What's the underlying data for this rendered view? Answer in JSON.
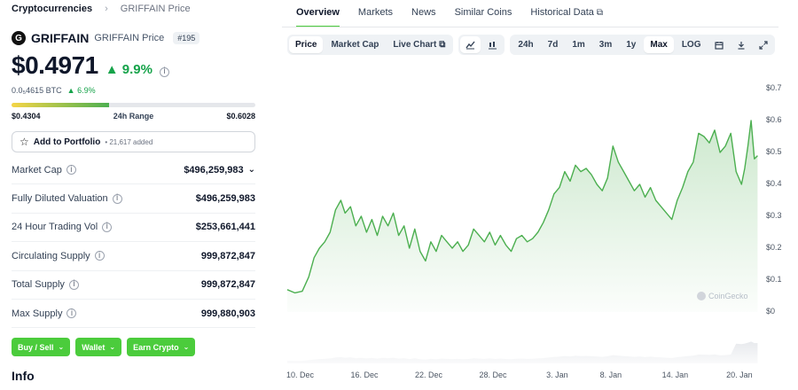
{
  "breadcrumb": {
    "parent": "Cryptocurrencies",
    "current": "GRIFFAIN Price"
  },
  "coin": {
    "logo_letter": "G",
    "name": "GRIFFAIN",
    "subtitle": "GRIFFAIN Price",
    "rank": "#195",
    "price": "$0.4971",
    "change_24h": "9.9%",
    "btc_price": "0.0₅4615 BTC",
    "btc_change": "6.9%"
  },
  "range": {
    "low": "$0.4304",
    "label": "24h Range",
    "high": "$0.6028",
    "position": 0.4
  },
  "portfolio": {
    "label": "Add to Portfolio",
    "added": "• 21,617 added"
  },
  "stats": [
    {
      "label": "Market Cap",
      "value": "$496,259,983",
      "dropdown": true
    },
    {
      "label": "Fully Diluted Valuation",
      "value": "$496,259,983",
      "dropdown": false
    },
    {
      "label": "24 Hour Trading Vol",
      "value": "$253,661,441",
      "dropdown": false
    },
    {
      "label": "Circulating Supply",
      "value": "999,872,847",
      "dropdown": false
    },
    {
      "label": "Total Supply",
      "value": "999,872,847",
      "dropdown": false
    },
    {
      "label": "Max Supply",
      "value": "999,880,903",
      "dropdown": false
    }
  ],
  "actions": {
    "buy_sell": "Buy / Sell",
    "wallet": "Wallet",
    "earn": "Earn Crypto"
  },
  "info_heading": "Info",
  "main_tabs": [
    "Overview",
    "Markets",
    "News",
    "Similar Coins",
    "Historical Data"
  ],
  "chart_type_tabs": [
    "Price",
    "Market Cap",
    "Live Chart"
  ],
  "range_tabs": [
    "24h",
    "7d",
    "1m",
    "3m",
    "1y",
    "Max",
    "LOG"
  ],
  "watermark": "CoinGecko",
  "colors": {
    "accent": "#4bcc3c",
    "up": "#16a34a",
    "line": "#4caf50"
  },
  "chart_data": {
    "type": "line",
    "title": "",
    "xlabel": "",
    "ylabel": "",
    "ylim": [
      0,
      0.7
    ],
    "y_ticks": [
      "$0",
      "$0.1",
      "$0.2",
      "$0.3",
      "$0.4",
      "$0.5",
      "$0.6",
      "$0.7"
    ],
    "x_tick_labels": [
      "10. Dec",
      "16. Dec",
      "22. Dec",
      "28. Dec",
      "3. Jan",
      "8. Jan",
      "14. Jan",
      "20. Jan"
    ],
    "x_tick_days": [
      10,
      16,
      22,
      28,
      34,
      39,
      45,
      51
    ],
    "x_range_days": [
      8.8,
      53.0
    ],
    "series": [
      {
        "x": [
          8.8,
          9.5,
          10.2,
          10.8,
          11.3,
          11.8,
          12.3,
          12.8,
          13.3,
          13.8,
          14.2,
          14.7,
          15.2,
          15.7,
          16.2,
          16.7,
          17.2,
          17.7,
          18.2,
          18.7,
          19.2,
          19.7,
          20.2,
          20.7,
          21.2,
          21.7,
          22.2,
          22.7,
          23.2,
          23.7,
          24.2,
          24.7,
          25.2,
          25.7,
          26.2,
          26.7,
          27.2,
          27.7,
          28.2,
          28.7,
          29.2,
          29.7,
          30.2,
          30.7,
          31.2,
          31.7,
          32.2,
          32.7,
          33.2,
          33.7,
          34.2,
          34.7,
          35.2,
          35.7,
          36.2,
          36.7,
          37.2,
          37.7,
          38.2,
          38.7,
          39.2,
          39.7,
          40.2,
          40.7,
          41.2,
          41.7,
          42.2,
          42.7,
          43.2,
          43.7,
          44.2,
          44.7,
          45.2,
          45.7,
          46.2,
          46.7,
          47.2,
          47.7,
          48.2,
          48.7,
          49.2,
          49.7,
          50.2,
          50.7,
          51.2,
          51.5,
          51.8,
          52.1,
          52.4,
          52.7
        ],
        "values": [
          0.07,
          0.06,
          0.065,
          0.11,
          0.17,
          0.2,
          0.22,
          0.25,
          0.32,
          0.35,
          0.31,
          0.33,
          0.27,
          0.3,
          0.25,
          0.29,
          0.24,
          0.3,
          0.27,
          0.31,
          0.24,
          0.27,
          0.2,
          0.26,
          0.19,
          0.16,
          0.22,
          0.19,
          0.24,
          0.22,
          0.2,
          0.22,
          0.19,
          0.21,
          0.26,
          0.24,
          0.22,
          0.25,
          0.21,
          0.24,
          0.21,
          0.19,
          0.23,
          0.24,
          0.22,
          0.23,
          0.25,
          0.28,
          0.32,
          0.37,
          0.39,
          0.44,
          0.41,
          0.46,
          0.44,
          0.45,
          0.43,
          0.4,
          0.38,
          0.42,
          0.52,
          0.47,
          0.44,
          0.41,
          0.38,
          0.4,
          0.36,
          0.39,
          0.35,
          0.33,
          0.31,
          0.29,
          0.35,
          0.39,
          0.44,
          0.47,
          0.56,
          0.55,
          0.53,
          0.57,
          0.5,
          0.52,
          0.56,
          0.44,
          0.4,
          0.45,
          0.52,
          0.6,
          0.48,
          0.49
        ]
      }
    ]
  }
}
